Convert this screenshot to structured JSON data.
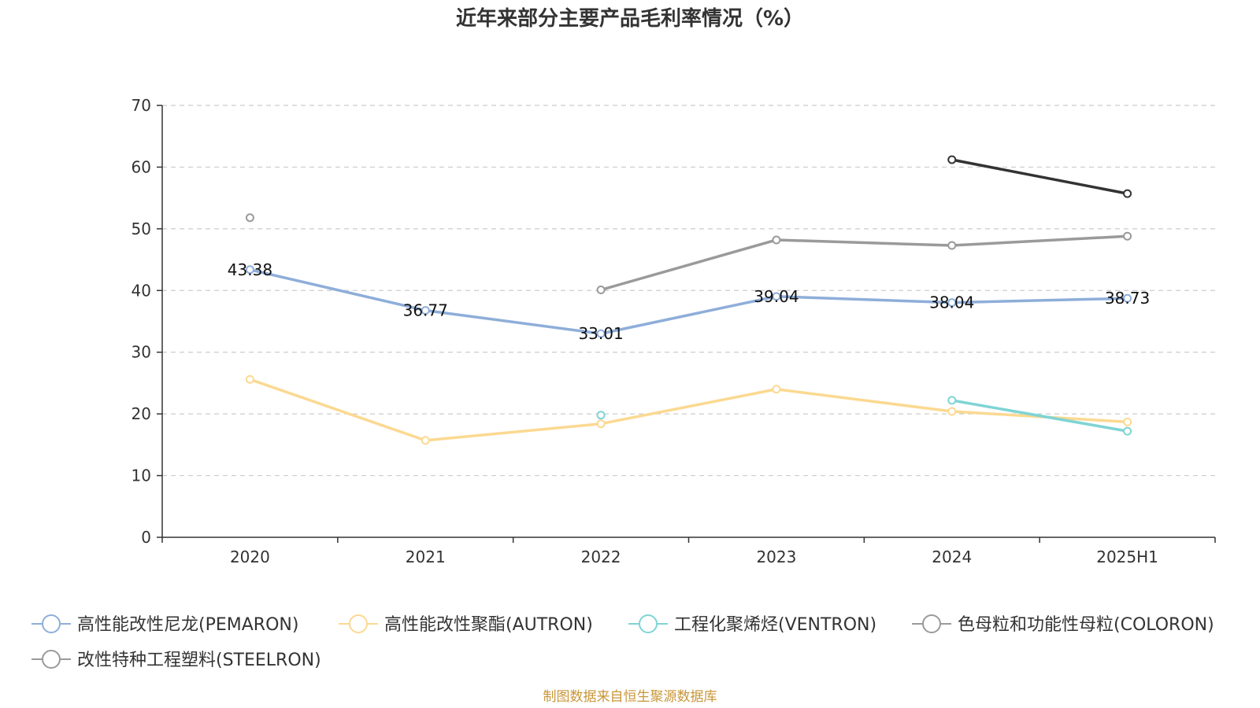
{
  "chart_data": {
    "type": "line",
    "title": "近年来部分主要产品毛利率情况（%）",
    "categories": [
      "2020",
      "2021",
      "2022",
      "2023",
      "2024",
      "2025H1"
    ],
    "ylim": [
      0,
      70
    ],
    "yticks": [
      0,
      10,
      20,
      30,
      40,
      50,
      60,
      70
    ],
    "grid": true,
    "legend_position": "bottom",
    "series": [
      {
        "name": "高性能改性尼龙(PEMARON)",
        "color": "#8eaed9",
        "values": [
          43.38,
          36.77,
          33.01,
          39.04,
          38.04,
          38.73
        ],
        "data_labels": [
          "43.38",
          "36.77",
          "33.01",
          "39.04",
          "38.04",
          "38.73"
        ]
      },
      {
        "name": "高性能改性聚酯(AUTRON)",
        "color": "#fbd991",
        "values": [
          25.6,
          15.7,
          18.4,
          24.0,
          20.4,
          18.7
        ]
      },
      {
        "name": "工程化聚烯烃(VENTRON)",
        "color": "#7fd4d4",
        "values": [
          null,
          null,
          19.8,
          null,
          22.2,
          17.2
        ]
      },
      {
        "name": "色母粒和功能性母粒(COLORON)",
        "color": "#9a9a9a",
        "values": [
          51.8,
          null,
          40.1,
          48.2,
          47.3,
          48.8
        ]
      },
      {
        "name": "改性特种工程塑料(STEELRON)",
        "color": "#333333",
        "legend_color": "#9a9a9a",
        "values": [
          null,
          null,
          null,
          null,
          61.2,
          55.7
        ]
      }
    ],
    "source": "制图数据来自恒生聚源数据库"
  }
}
